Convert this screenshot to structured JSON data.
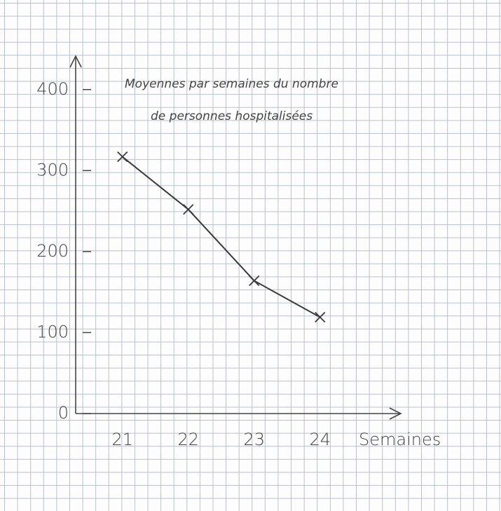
{
  "chart_data": {
    "type": "line",
    "title": [
      "Moyennes par semaines du nombre",
      "de personnes hospitalisées"
    ],
    "x_label": "Semaines",
    "categories": [
      "21",
      "22",
      "23",
      "24"
    ],
    "values": [
      317,
      252,
      164,
      119
    ],
    "color": "#3a3a3a",
    "ylim": [
      0,
      437
    ],
    "yticks": [
      0,
      100,
      200,
      300,
      400
    ]
  }
}
